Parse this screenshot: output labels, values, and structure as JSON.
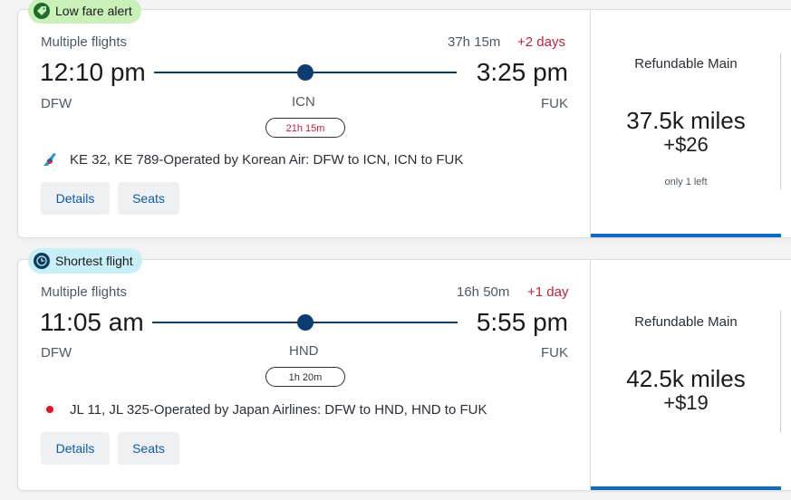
{
  "results": [
    {
      "badge": "Low fare alert",
      "badge_icon": "tag-icon",
      "badge_color": "#c9f0b8",
      "subtitle": "Multiple flights",
      "duration": "37h 15m",
      "day_change": "+2 days",
      "depart_time": "12:10 pm",
      "arrive_time": "3:25 pm",
      "origin": "DFW",
      "stop": "ICN",
      "destination": "FUK",
      "layover": "21h 15m",
      "airline_text": "KE 32, KE 789-Operated by Korean Air: DFW to ICN, ICN to FUK",
      "airline_icon": "korean-air-logo",
      "details_label": "Details",
      "seats_label": "Seats",
      "fare_name": "Refundable Main",
      "miles": "37.5k miles",
      "tax": "+$26",
      "availability": "only 1 left"
    },
    {
      "badge": "Shortest flight",
      "badge_icon": "clock-icon",
      "badge_color": "#c8eef8",
      "subtitle": "Multiple flights",
      "duration": "16h 50m",
      "day_change": "+1 day",
      "depart_time": "11:05 am",
      "arrive_time": "5:55 pm",
      "origin": "DFW",
      "stop": "HND",
      "destination": "FUK",
      "layover": "1h 20m",
      "airline_text": "JL 11, JL 325-Operated by Japan Airlines: DFW to HND, HND to FUK",
      "airline_icon": "japan-airlines-logo",
      "details_label": "Details",
      "seats_label": "Seats",
      "fare_name": "Refundable Main",
      "miles": "42.5k miles",
      "tax": "+$19"
    }
  ],
  "colors": {
    "primary": "#0b3d70",
    "link": "#0e5ca8",
    "alert": "#c41e3a",
    "accent_bar": "#0e6bc4"
  }
}
